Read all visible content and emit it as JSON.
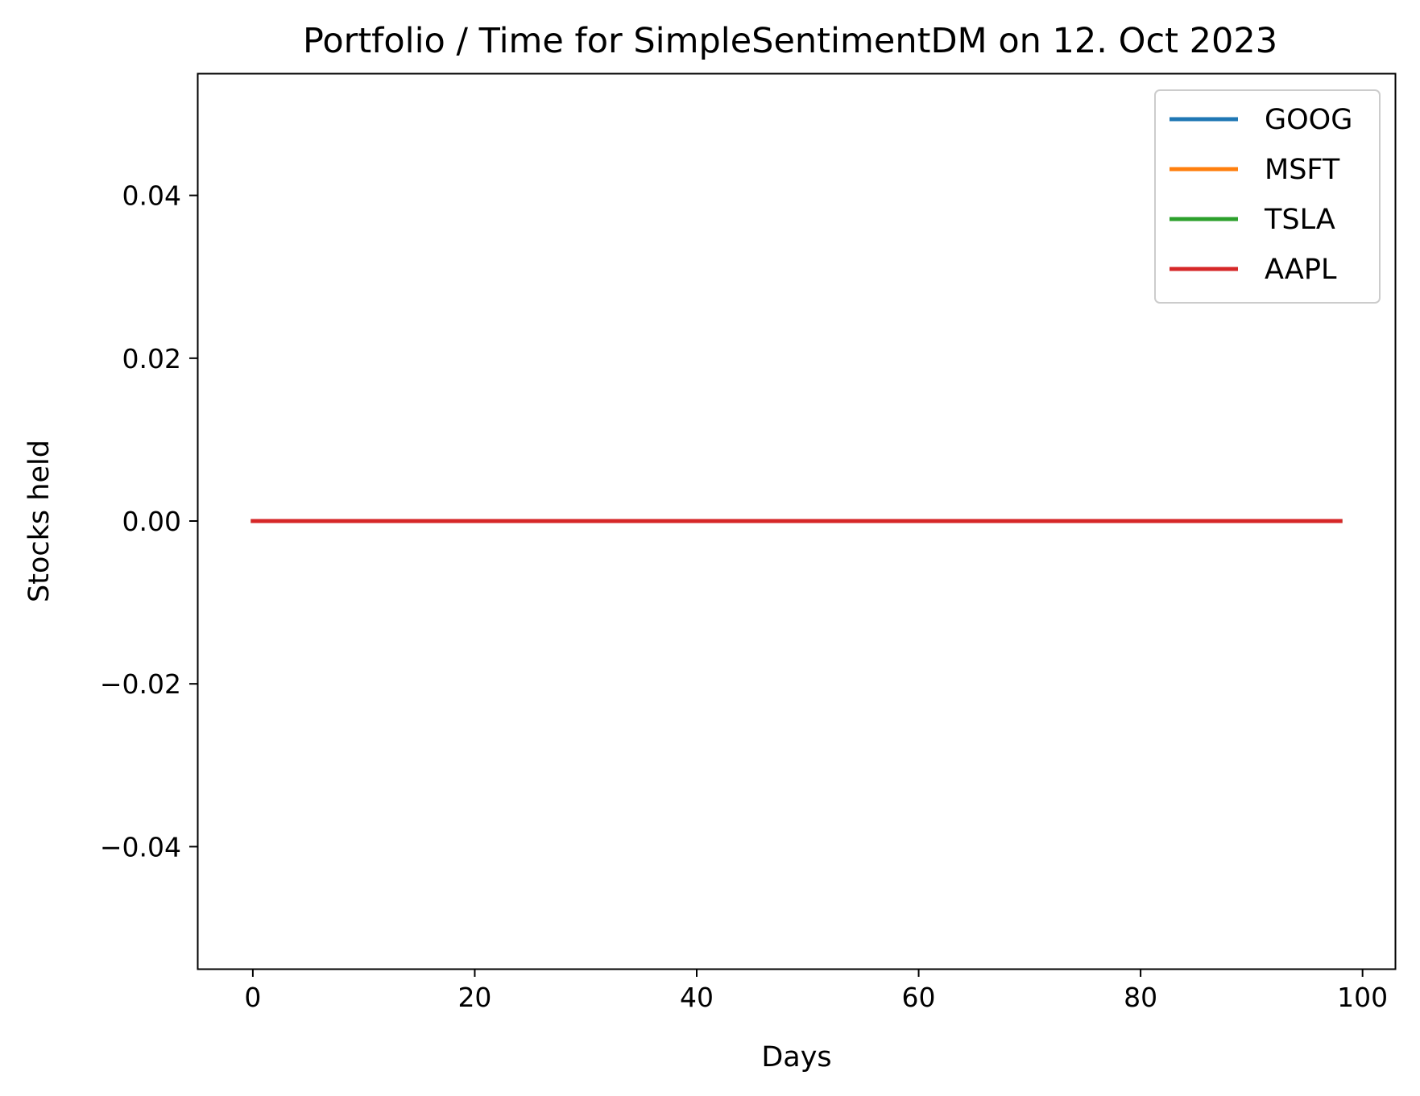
{
  "chart_data": {
    "type": "line",
    "title": "Portfolio / Time for SimpleSentimentDM on 12. Oct 2023",
    "xlabel": "Days",
    "ylabel": "Stocks held",
    "xlim": [
      -5,
      103
    ],
    "ylim": [
      -0.055,
      0.055
    ],
    "x_ticks": [
      0,
      20,
      40,
      60,
      80,
      100
    ],
    "x_tick_labels": [
      "0",
      "20",
      "40",
      "60",
      "80",
      "100"
    ],
    "y_ticks": [
      0.04,
      0.02,
      0.0,
      -0.02,
      -0.04
    ],
    "y_tick_labels": [
      "0.04",
      "0.02",
      "0.00",
      "−0.02",
      "−0.04"
    ],
    "x": [
      0,
      98
    ],
    "series": [
      {
        "name": "GOOG",
        "color": "#1f77b4",
        "values": [
          0,
          0
        ]
      },
      {
        "name": "MSFT",
        "color": "#ff7f0e",
        "values": [
          0,
          0
        ]
      },
      {
        "name": "TSLA",
        "color": "#2ca02c",
        "values": [
          0,
          0
        ]
      },
      {
        "name": "AAPL",
        "color": "#d62728",
        "values": [
          0,
          0
        ]
      }
    ],
    "grid": false,
    "legend_position": "top-right"
  }
}
